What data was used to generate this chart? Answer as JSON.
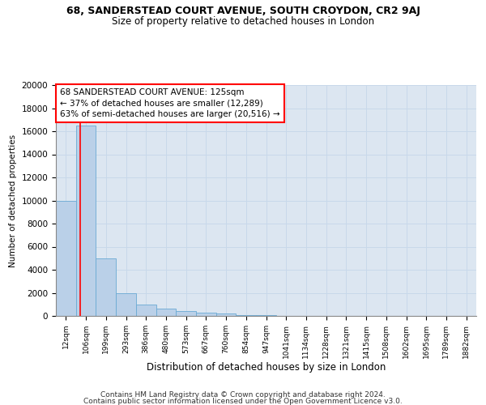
{
  "title1": "68, SANDERSTEAD COURT AVENUE, SOUTH CROYDON, CR2 9AJ",
  "title2": "Size of property relative to detached houses in London",
  "xlabel": "Distribution of detached houses by size in London",
  "ylabel": "Number of detached properties",
  "bar_labels": [
    "12sqm",
    "106sqm",
    "199sqm",
    "293sqm",
    "386sqm",
    "480sqm",
    "573sqm",
    "667sqm",
    "760sqm",
    "854sqm",
    "947sqm",
    "1041sqm",
    "1134sqm",
    "1228sqm",
    "1321sqm",
    "1415sqm",
    "1508sqm",
    "1602sqm",
    "1695sqm",
    "1789sqm",
    "1882sqm"
  ],
  "bar_heights": [
    10000,
    16500,
    5000,
    2000,
    1000,
    600,
    400,
    300,
    200,
    100,
    50,
    30,
    20,
    10,
    5,
    5,
    5,
    5,
    5,
    5,
    5
  ],
  "bar_color": "#bad0e8",
  "bar_edge_color": "#6aaad4",
  "grid_color": "#c8d8ea",
  "background_color": "#dce6f1",
  "annotation_text": "68 SANDERSTEAD COURT AVENUE: 125sqm\n← 37% of detached houses are smaller (12,289)\n63% of semi-detached houses are larger (20,516) →",
  "ylim": [
    0,
    20000
  ],
  "yticks": [
    0,
    2000,
    4000,
    6000,
    8000,
    10000,
    12000,
    14000,
    16000,
    18000,
    20000
  ],
  "footer1": "Contains HM Land Registry data © Crown copyright and database right 2024.",
  "footer2": "Contains public sector information licensed under the Open Government Licence v3.0.",
  "title1_fontsize": 9,
  "title2_fontsize": 8.5,
  "xlabel_fontsize": 8.5,
  "ylabel_fontsize": 7.5,
  "tick_fontsize": 7.5,
  "xtick_fontsize": 6.5,
  "annotation_fontsize": 7.5,
  "footer_fontsize": 6.5
}
